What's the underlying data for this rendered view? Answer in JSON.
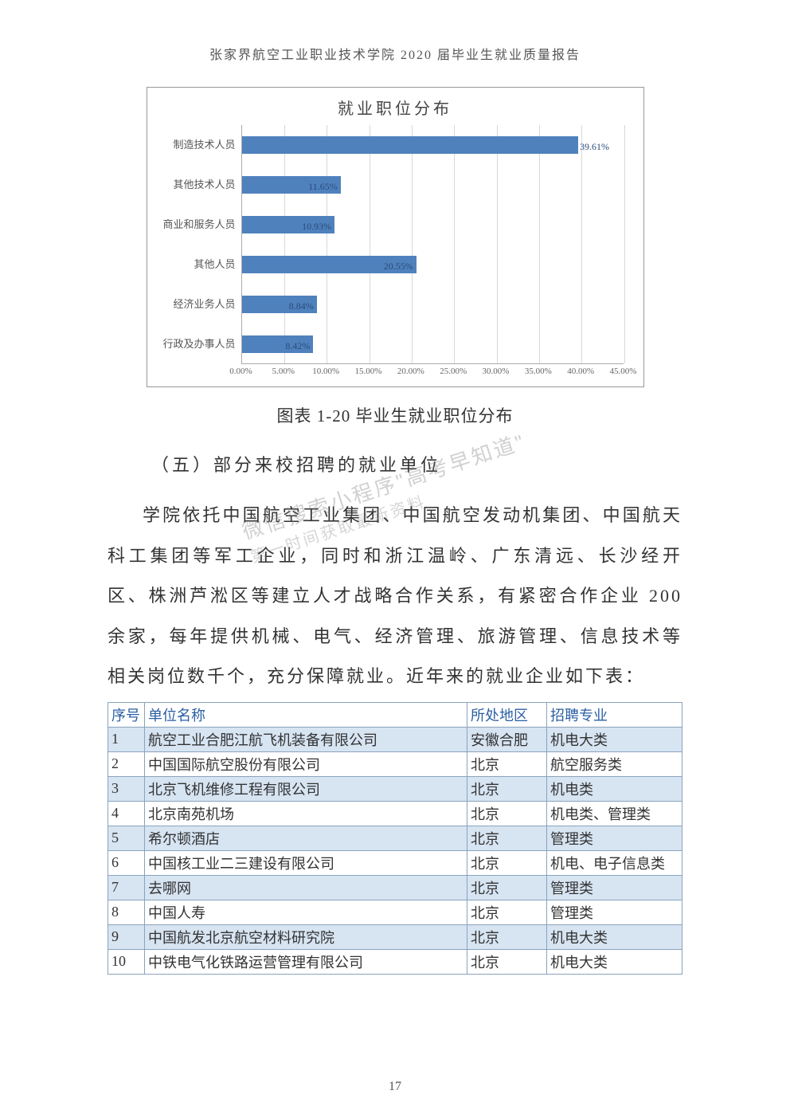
{
  "header": "张家界航空工业职业技术学院 2020 届毕业生就业质量报告",
  "chart": {
    "type": "bar-horizontal",
    "title": "就业职位分布",
    "xmax": 45.0,
    "xtick_step": 5.0,
    "xtick_format_suffix": "%",
    "bar_color": "#4f81bd",
    "grid_color": "#d8d8d8",
    "label_color": "#2a4c7a",
    "label_fontsize": 12,
    "categories": [
      {
        "label": "制造技术人员",
        "value": 39.61,
        "display": "39.61%",
        "label_pos": "outside"
      },
      {
        "label": "其他技术人员",
        "value": 11.65,
        "display": "11.65%",
        "label_pos": "inside"
      },
      {
        "label": "商业和服务人员",
        "value": 10.93,
        "display": "10.93%",
        "label_pos": "inside"
      },
      {
        "label": "其他人员",
        "value": 20.55,
        "display": "20.55%",
        "label_pos": "inside"
      },
      {
        "label": "经济业务人员",
        "value": 8.84,
        "display": "8.84%",
        "label_pos": "inside"
      },
      {
        "label": "行政及办事人员",
        "value": 8.42,
        "display": "8.42%",
        "label_pos": "inside"
      }
    ]
  },
  "caption": "图表 1-20  毕业生就业职位分布",
  "section_head": "（五）部分来校招聘的就业单位",
  "paragraph_full": "学院依托中国航空工业集团、中国航空发动机集团、中国航天科工集团等军工企业，同时和浙江温岭、广东清远、长沙经开区、株洲芦淞区等建立人才战略合作关系，有紧密合作企业 200 余家，每年提供机械、电气、经济管理、旅游管理、信息技术等相关岗位数千个，充分保障就业。近年来的就业企业如下表：",
  "watermark_line1": "微信搜索小程序\"高考早知道\"",
  "watermark_line2": "第一时间获取最新资料",
  "table": {
    "columns": [
      "序号",
      "单位名称",
      "所处地区",
      "招聘专业"
    ],
    "rows": [
      [
        "1",
        "航空工业合肥江航飞机装备有限公司",
        "安徽合肥",
        "机电大类"
      ],
      [
        "2",
        "中国国际航空股份有限公司",
        "北京",
        "航空服务类"
      ],
      [
        "3",
        "北京飞机维修工程有限公司",
        "北京",
        "机电类"
      ],
      [
        "4",
        "北京南苑机场",
        "北京",
        "机电类、管理类"
      ],
      [
        "5",
        "希尔顿酒店",
        "北京",
        "管理类"
      ],
      [
        "6",
        "中国核工业二三建设有限公司",
        "北京",
        "机电、电子信息类"
      ],
      [
        "7",
        "去哪网",
        "北京",
        "管理类"
      ],
      [
        "8",
        "中国人寿",
        "北京",
        "管理类"
      ],
      [
        "9",
        "中国航发北京航空材料研究院",
        "北京",
        "机电大类"
      ],
      [
        "10",
        "中铁电气化铁路运营管理有限公司",
        "北京",
        "机电大类"
      ]
    ],
    "odd_bg": "#d7e4f2",
    "even_bg": "#ffffff",
    "border_color": "#8aa3bc",
    "header_color": "#2b5fa3"
  },
  "page_number": "17"
}
